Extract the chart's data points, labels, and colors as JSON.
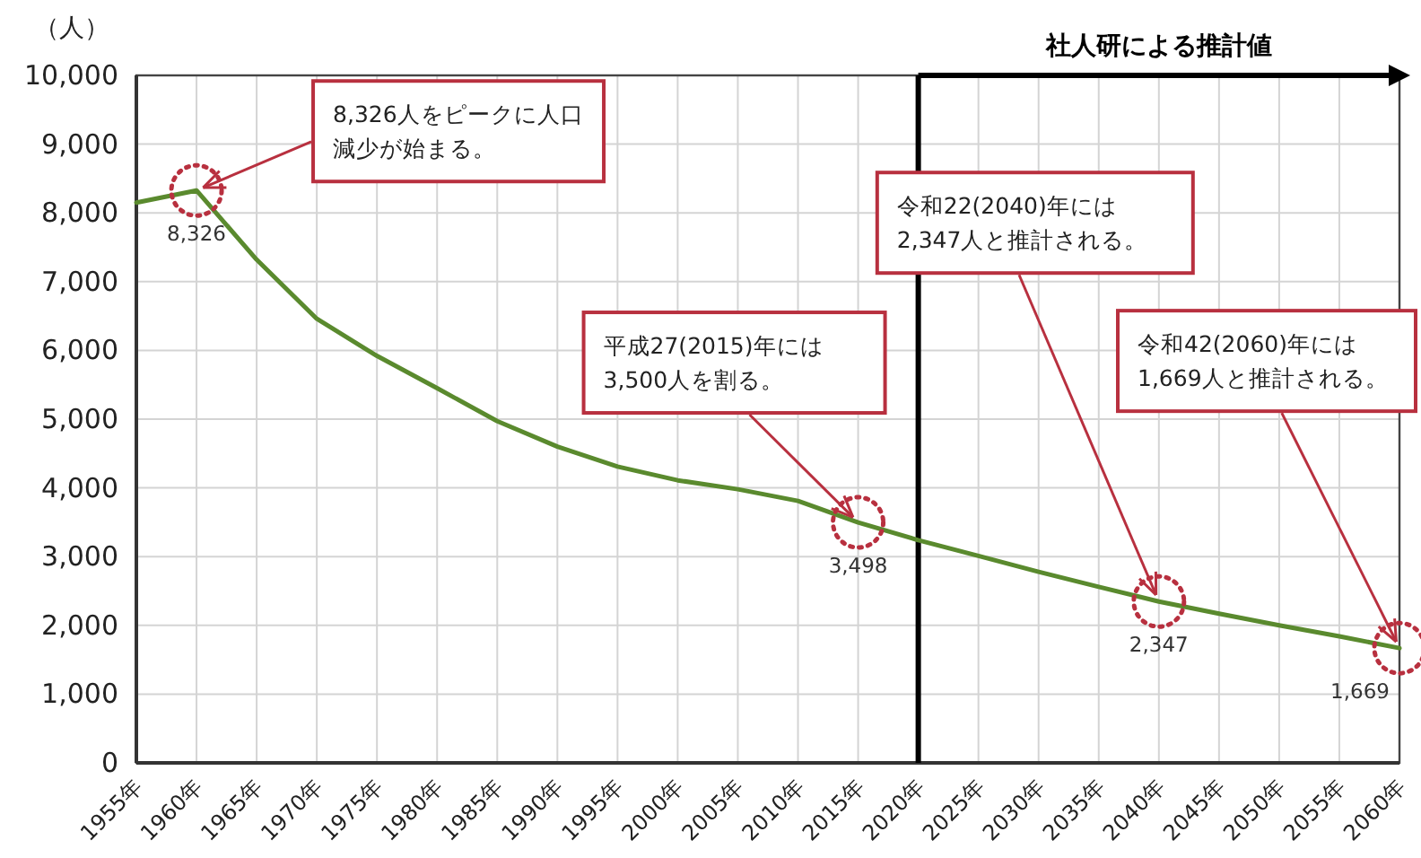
{
  "chart_data": {
    "type": "line",
    "ylabel": "（人）",
    "categories": [
      "1955年",
      "1960年",
      "1965年",
      "1970年",
      "1975年",
      "1980年",
      "1985年",
      "1990年",
      "1995年",
      "2000年",
      "2005年",
      "2010年",
      "2015年",
      "2020年",
      "2025年",
      "2030年",
      "2035年",
      "2040年",
      "2045年",
      "2050年",
      "2055年",
      "2060年"
    ],
    "series": [
      {
        "color": "#5a8a2e",
        "values": [
          8150,
          8326,
          7320,
          6460,
          5920,
          5450,
          4970,
          4600,
          4310,
          4110,
          3980,
          3810,
          3498,
          3240,
          3010,
          2780,
          2560,
          2347,
          2170,
          2000,
          1840,
          1669
        ],
        "value_labels": [
          null,
          "8,326",
          null,
          null,
          null,
          null,
          null,
          null,
          null,
          null,
          null,
          null,
          "3,498",
          null,
          null,
          null,
          null,
          "2,347",
          null,
          null,
          null,
          "1,669"
        ]
      }
    ],
    "ylim": [
      0,
      10000
    ],
    "yticks": [
      {
        "value": 0,
        "label": "0"
      },
      {
        "value": 1000,
        "label": "1,000"
      },
      {
        "value": 2000,
        "label": "2,000"
      },
      {
        "value": 3000,
        "label": "3,000"
      },
      {
        "value": 4000,
        "label": "4,000"
      },
      {
        "value": 5000,
        "label": "5,000"
      },
      {
        "value": 6000,
        "label": "6,000"
      },
      {
        "value": 7000,
        "label": "7,000"
      },
      {
        "value": 8000,
        "label": "8,000"
      },
      {
        "value": 9000,
        "label": "9,000"
      },
      {
        "value": 10000,
        "label": "10,000"
      }
    ],
    "grid": true,
    "marker": "none",
    "line_style": "solid",
    "ref_lines": [
      {
        "axis": "x",
        "value": "2020年",
        "label": "社人研による推計値",
        "color": "#000000"
      }
    ],
    "annotations": [
      {
        "text": "8,326人をピークに人口減少が始まる。",
        "x": "1960年",
        "y": 8326
      },
      {
        "text": "平成27(2015)年には3,500人を割る。",
        "x": "2015年",
        "y": 3498
      },
      {
        "text": "令和22(2040)年には2,347人と推計される。",
        "x": "2040年",
        "y": 2347
      },
      {
        "text": "令和42(2060)年には1,669人と推計される。",
        "x": "2060年",
        "y": 1669
      }
    ]
  }
}
